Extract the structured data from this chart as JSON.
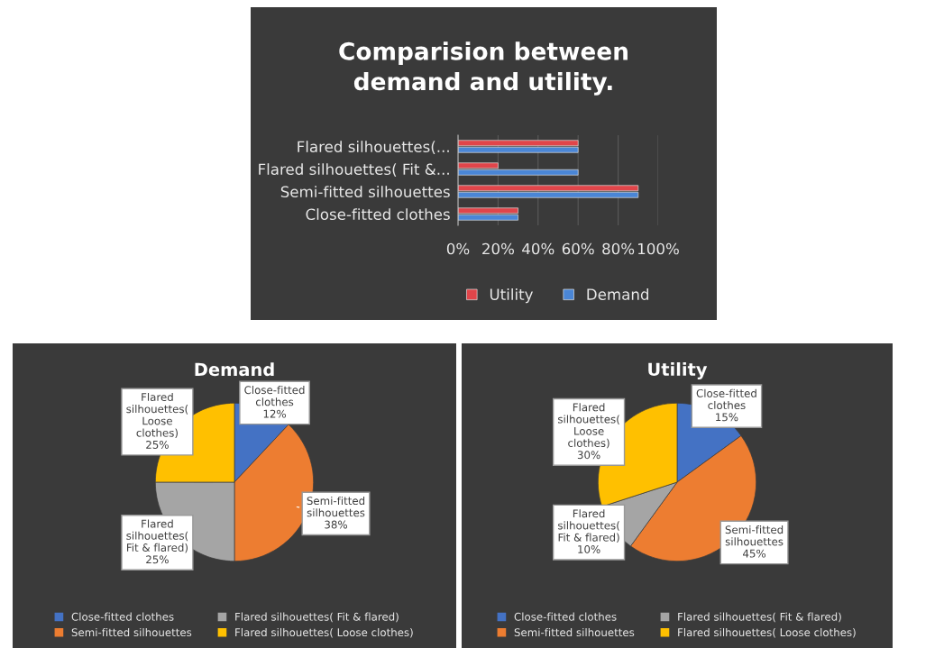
{
  "chart_data": [
    {
      "type": "bar",
      "orientation": "horizontal",
      "title": "Comparision between demand and utility.",
      "categories": [
        "Flared silhouettes(...",
        "Flared silhouettes( Fit &...",
        "Semi-fitted silhouettes",
        "Close-fitted clothes"
      ],
      "series": [
        {
          "name": "Utility",
          "color": "#e0454a",
          "values": [
            60,
            20,
            90,
            30
          ]
        },
        {
          "name": "Demand",
          "color": "#4a86d6",
          "values": [
            60,
            60,
            90,
            30
          ]
        }
      ],
      "xlim": [
        0,
        100
      ],
      "xticks": [
        {
          "value": 0,
          "label": "0%"
        },
        {
          "value": 20,
          "label": "20%"
        },
        {
          "value": 40,
          "label": "40%"
        },
        {
          "value": 60,
          "label": "60%"
        },
        {
          "value": 80,
          "label": "80%"
        },
        {
          "value": 100,
          "label": "100%"
        }
      ],
      "grid": "x",
      "legend": "bottom"
    },
    {
      "type": "pie",
      "title": "Demand",
      "categories": [
        "Close-fitted clothes",
        "Semi-fitted silhouettes",
        "Flared silhouettes( Fit & flared)",
        "Flared silhouettes( Loose clothes)"
      ],
      "values": [
        12,
        38,
        25,
        25
      ],
      "value_labels": [
        "12%",
        "38%",
        "25%",
        "25%"
      ],
      "colors": [
        "#4472c4",
        "#ed7d31",
        "#a5a5a5",
        "#ffc000"
      ],
      "legend": "bottom"
    },
    {
      "type": "pie",
      "title": "Utility",
      "categories": [
        "Close-fitted clothes",
        "Semi-fitted silhouettes",
        "Flared silhouettes( Fit & flared)",
        "Flared silhouettes( Loose clothes)"
      ],
      "values": [
        15,
        45,
        10,
        30
      ],
      "value_labels": [
        "15%",
        "45%",
        "10%",
        "30%"
      ],
      "colors": [
        "#4472c4",
        "#ed7d31",
        "#a5a5a5",
        "#ffc000"
      ],
      "legend": "bottom"
    }
  ]
}
